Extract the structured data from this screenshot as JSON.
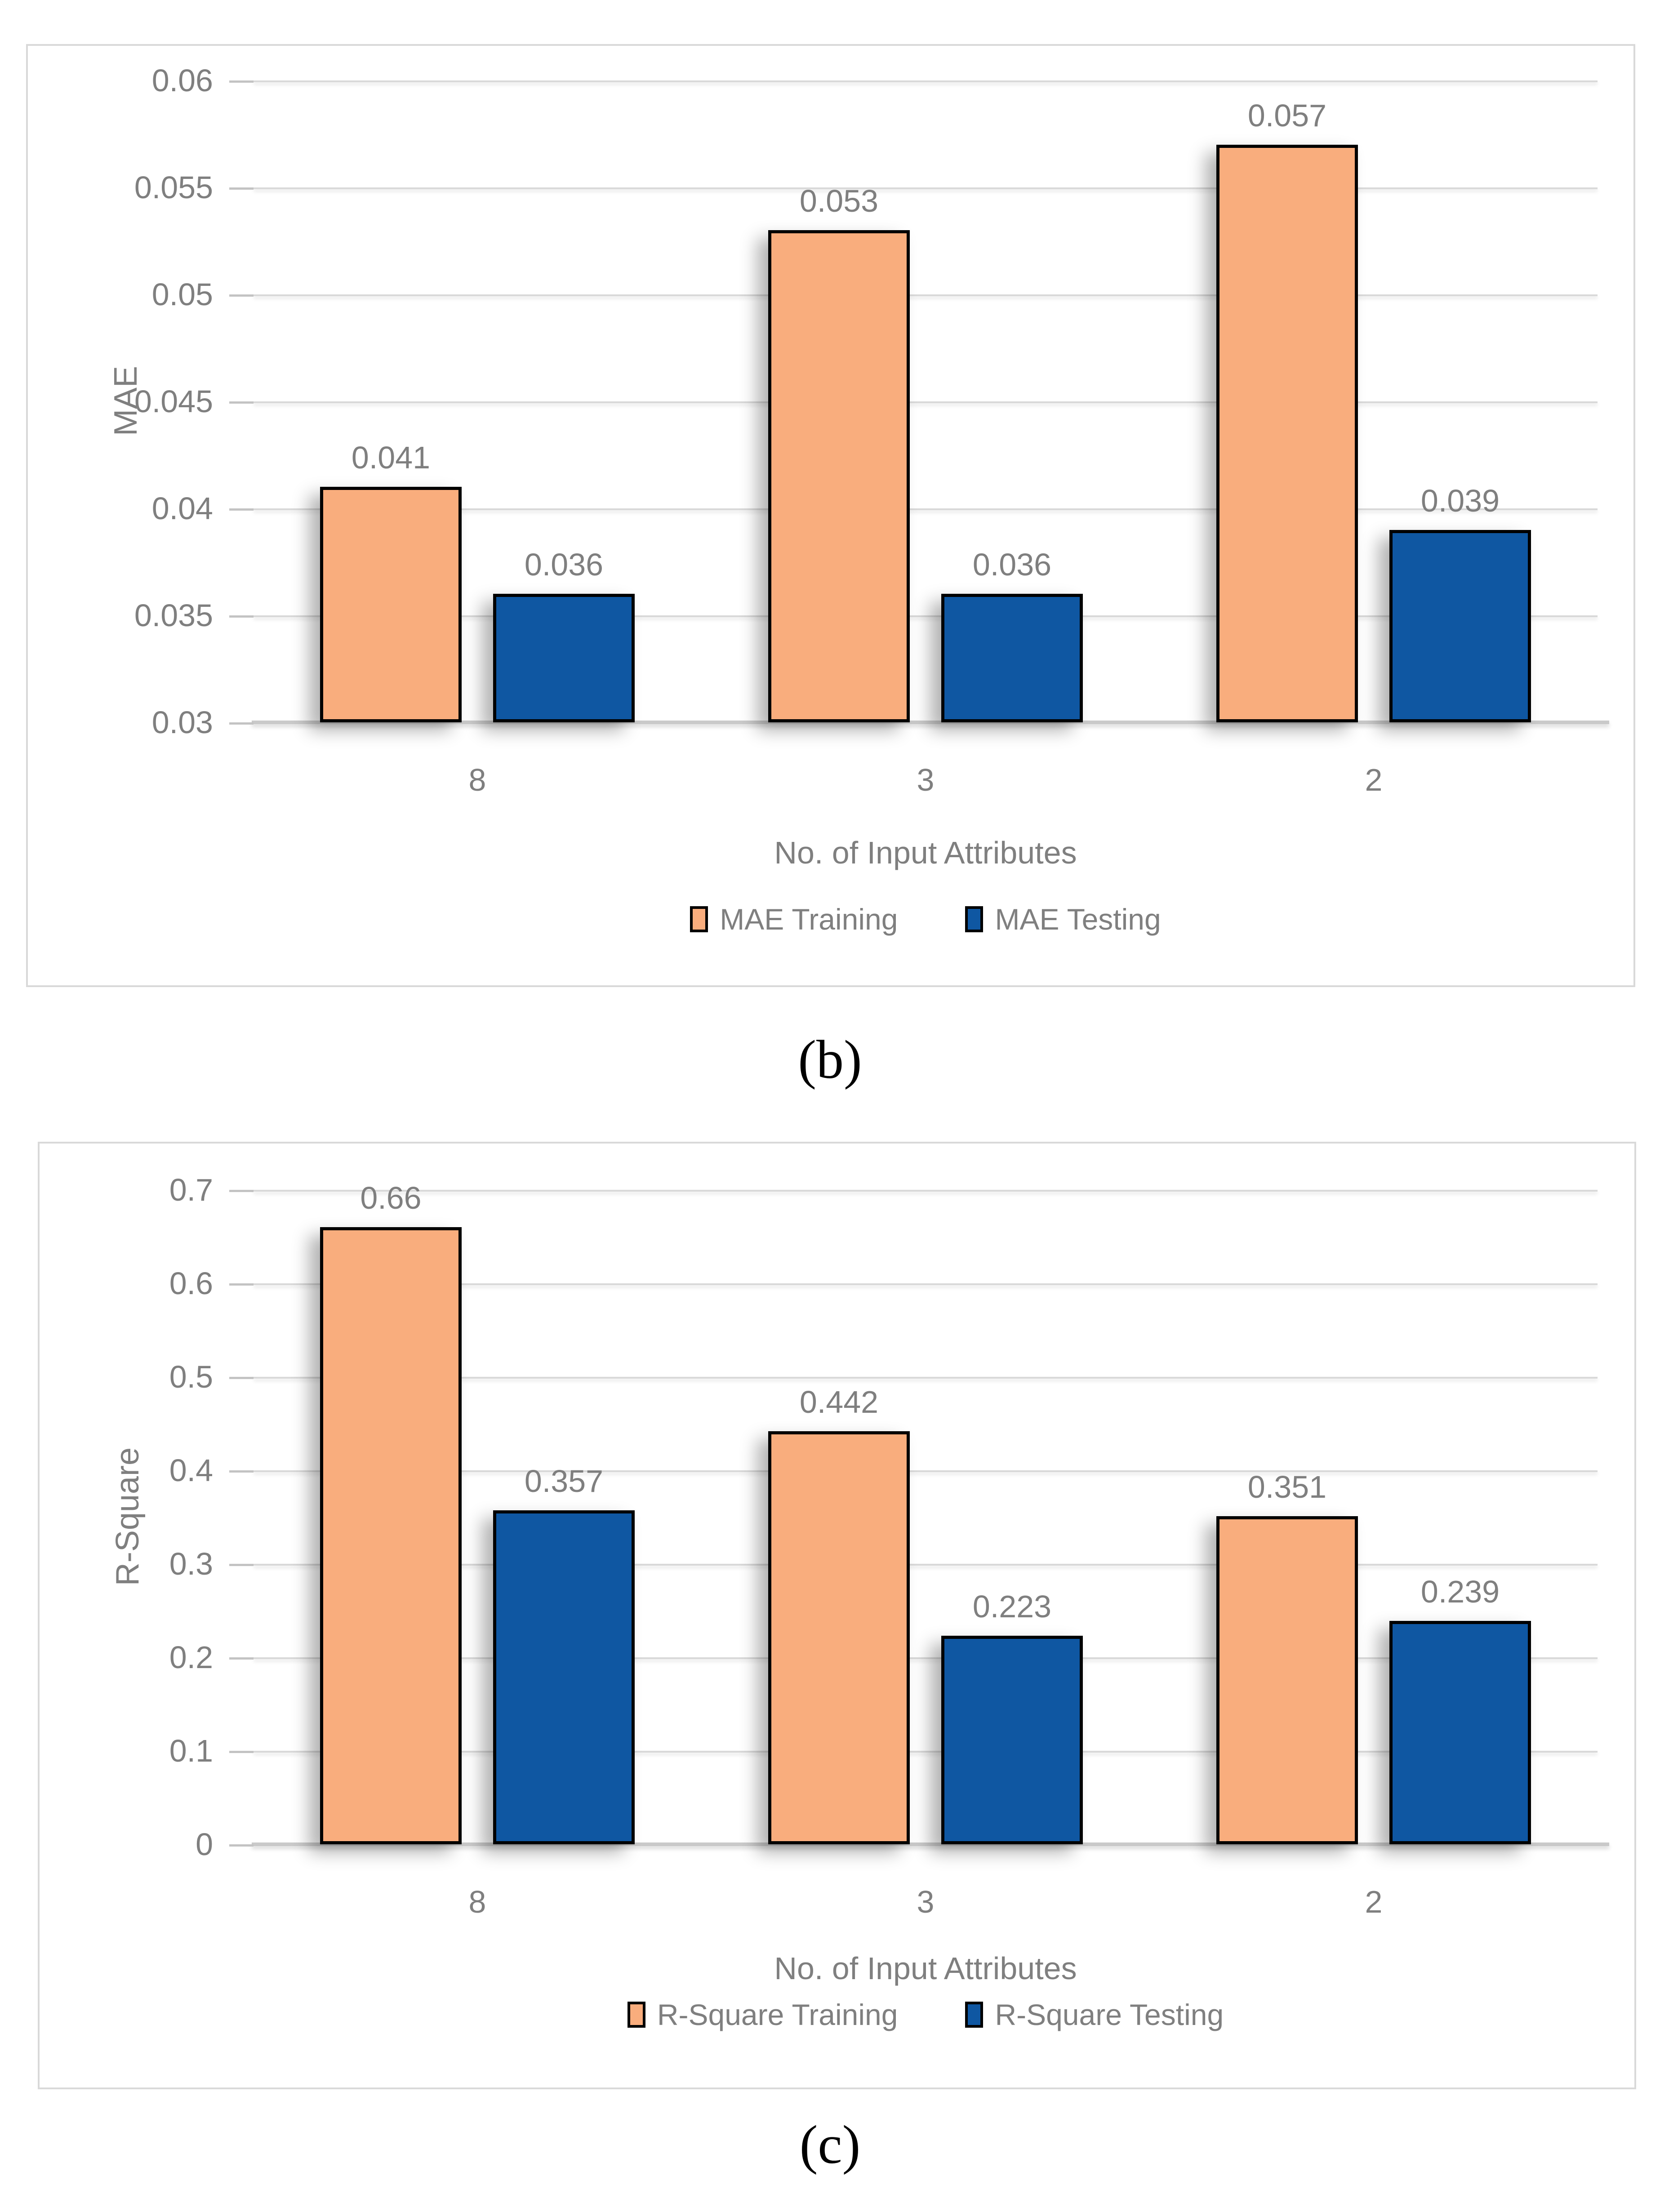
{
  "style": {
    "background": "#FFFFFF",
    "panel_border": "#D9D9D9",
    "gridline_color": "#D9D9D9",
    "axis_line_color": "#C9C9C9",
    "text_color": "#7F7F7F",
    "bar_border_color": "#000000",
    "training_color": "#F9AD7D",
    "testing_color": "#0F57A2"
  },
  "chart_data": [
    {
      "type": "bar",
      "caption": "(b)",
      "ylabel": "MAE",
      "xlabel": "No. of Input Attributes",
      "categories": [
        "8",
        "3",
        "2"
      ],
      "series": [
        {
          "name": "MAE Training",
          "color": "#F9AD7D",
          "values": [
            0.041,
            0.053,
            0.057
          ],
          "labels": [
            "0.041",
            "0.053",
            "0.057"
          ]
        },
        {
          "name": "MAE Testing",
          "color": "#0F57A2",
          "values": [
            0.036,
            0.036,
            0.039
          ],
          "labels": [
            "0.036",
            "0.036",
            "0.039"
          ]
        }
      ],
      "ylim": [
        0.03,
        0.06
      ],
      "ytick_labels": [
        "0.06",
        "0.055",
        "0.05",
        "0.045",
        "0.04",
        "0.035",
        "0.03"
      ],
      "grid": true,
      "legend_position": "bottom"
    },
    {
      "type": "bar",
      "caption": "(c)",
      "ylabel": "R-Square",
      "xlabel": "No. of Input Attributes",
      "categories": [
        "8",
        "3",
        "2"
      ],
      "series": [
        {
          "name": "R-Square Training",
          "color": "#F9AD7D",
          "values": [
            0.66,
            0.442,
            0.351
          ],
          "labels": [
            "0.66",
            "0.442",
            "0.351"
          ]
        },
        {
          "name": "R-Square Testing",
          "color": "#0F57A2",
          "values": [
            0.357,
            0.223,
            0.239
          ],
          "labels": [
            "0.357",
            "0.223",
            "0.239"
          ]
        }
      ],
      "ylim": [
        0,
        0.7
      ],
      "ytick_labels": [
        "0.7",
        "0.6",
        "0.5",
        "0.4",
        "0.3",
        "0.2",
        "0.1",
        "0"
      ],
      "grid": true,
      "legend_position": "bottom"
    }
  ]
}
